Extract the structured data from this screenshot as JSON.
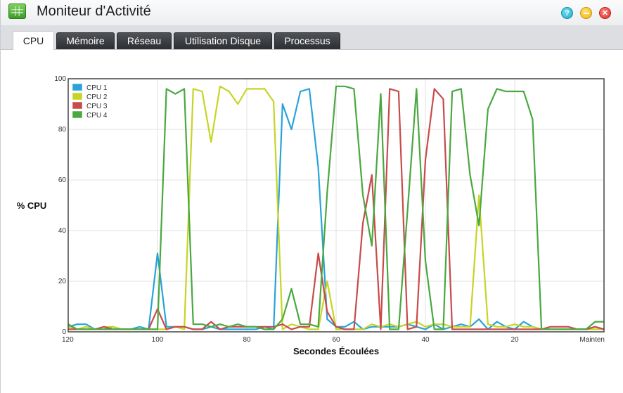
{
  "window": {
    "title": "Moniteur d'Activité",
    "help_symbol": "?",
    "close_symbol": "✕",
    "icon": "activity-monitor-icon"
  },
  "tabs": [
    {
      "label": "CPU",
      "active": true
    },
    {
      "label": "Mémoire",
      "active": false
    },
    {
      "label": "Réseau",
      "active": false
    },
    {
      "label": "Utilisation Disque",
      "active": false
    },
    {
      "label": "Processus",
      "active": false
    }
  ],
  "chart_data": {
    "type": "line",
    "title": "",
    "xlabel": "Secondes Écoulées",
    "ylabel": "% CPU",
    "xlim": [
      120,
      0
    ],
    "ylim": [
      0,
      100
    ],
    "x_ticks": [
      {
        "value": 120,
        "label": "120"
      },
      {
        "value": 100,
        "label": "100"
      },
      {
        "value": 80,
        "label": "80"
      },
      {
        "value": 60,
        "label": "60"
      },
      {
        "value": 40,
        "label": "40"
      },
      {
        "value": 20,
        "label": "20"
      },
      {
        "value": 0,
        "label": "Mainten"
      }
    ],
    "y_ticks": [
      0,
      20,
      40,
      60,
      80,
      100
    ],
    "grid": true,
    "legend_position": "top-left",
    "x": [
      120,
      118,
      116,
      114,
      112,
      110,
      108,
      106,
      104,
      102,
      100,
      98,
      96,
      94,
      92,
      90,
      88,
      86,
      84,
      82,
      80,
      78,
      76,
      74,
      72,
      70,
      68,
      66,
      64,
      62,
      60,
      58,
      56,
      54,
      52,
      50,
      48,
      46,
      44,
      42,
      40,
      38,
      36,
      34,
      32,
      30,
      28,
      26,
      24,
      22,
      20,
      18,
      16,
      14,
      12,
      10,
      8,
      6,
      4,
      2,
      0
    ],
    "series": [
      {
        "name": "CPU 1",
        "color": "#29a3d9",
        "values": [
          2,
          3,
          3,
          1,
          1,
          2,
          1,
          1,
          2,
          1,
          31,
          2,
          2,
          2,
          1,
          1,
          2,
          1,
          1,
          1,
          1,
          1,
          2,
          1,
          90,
          80,
          95,
          96,
          65,
          5,
          2,
          2,
          4,
          1,
          2,
          2,
          2,
          2,
          3,
          2,
          1,
          3,
          1,
          2,
          3,
          2,
          5,
          1,
          4,
          2,
          1,
          4,
          2,
          1,
          1,
          1,
          1,
          1,
          1,
          2,
          1
        ]
      },
      {
        "name": "CPU 2",
        "color": "#c6d524",
        "values": [
          2,
          1,
          2,
          1,
          2,
          2,
          1,
          1,
          1,
          1,
          1,
          1,
          2,
          1,
          96,
          95,
          75,
          97,
          95,
          90,
          96,
          96,
          96,
          91,
          1,
          3,
          2,
          1,
          1,
          20,
          1,
          1,
          1,
          1,
          3,
          2,
          3,
          2,
          3,
          4,
          2,
          3,
          3,
          2,
          2,
          2,
          54,
          3,
          2,
          2,
          3,
          2,
          2,
          1,
          1,
          1,
          1,
          1,
          1,
          1,
          1
        ]
      },
      {
        "name": "CPU 3",
        "color": "#c94a4a",
        "values": [
          1,
          1,
          1,
          1,
          2,
          1,
          1,
          1,
          1,
          1,
          9,
          1,
          2,
          2,
          1,
          1,
          4,
          1,
          2,
          2,
          2,
          2,
          2,
          2,
          3,
          1,
          2,
          2,
          31,
          8,
          2,
          1,
          1,
          43,
          62,
          1,
          96,
          95,
          1,
          2,
          68,
          96,
          92,
          1,
          1,
          1,
          1,
          1,
          1,
          1,
          1,
          1,
          1,
          1,
          2,
          2,
          2,
          1,
          1,
          2,
          1
        ]
      },
      {
        "name": "CPU 4",
        "color": "#49a83f",
        "values": [
          3,
          1,
          1,
          1,
          1,
          1,
          1,
          1,
          1,
          1,
          1,
          96,
          94,
          96,
          3,
          3,
          2,
          3,
          2,
          3,
          2,
          2,
          1,
          1,
          5,
          17,
          3,
          3,
          2,
          55,
          97,
          97,
          96,
          54,
          34,
          94,
          1,
          1,
          48,
          96,
          28,
          1,
          1,
          95,
          96,
          62,
          42,
          88,
          96,
          95,
          95,
          95,
          84,
          1,
          1,
          1,
          1,
          1,
          1,
          4,
          4
        ]
      }
    ]
  }
}
